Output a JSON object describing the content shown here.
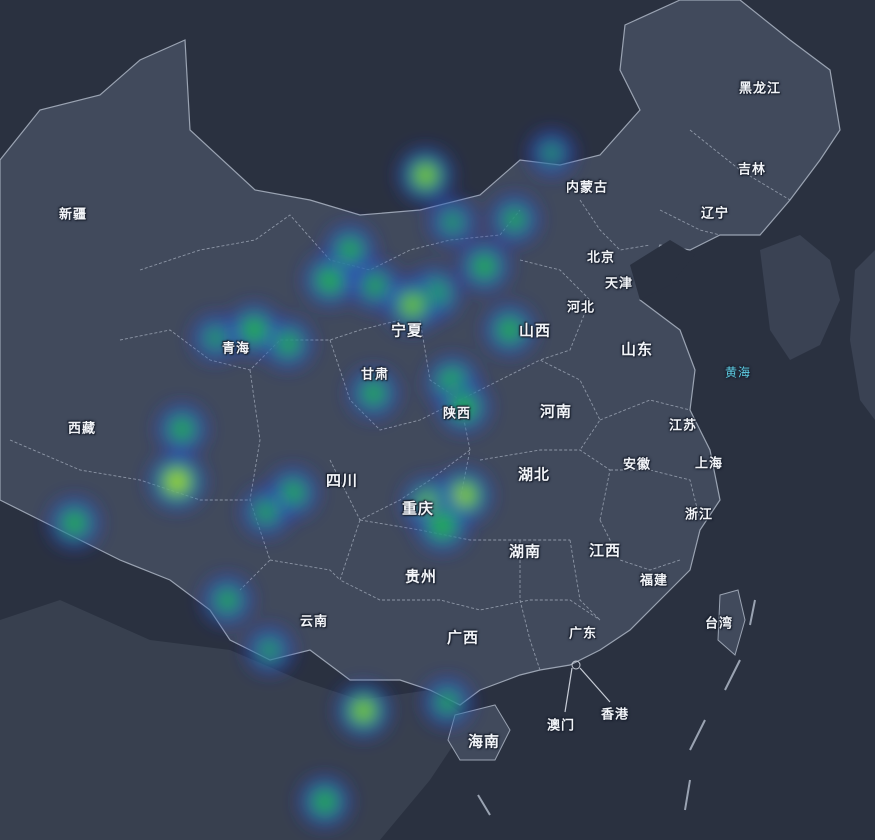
{
  "title": "",
  "labels": {
    "heilongjiang": "黑龙江",
    "jilin": "吉林",
    "liaoning": "辽宁",
    "neimenggu": "内蒙古",
    "beijing": "北京",
    "tianjin": "天津",
    "hebei": "河北",
    "shanxi": "山西",
    "shandong": "山东",
    "ningxia": "宁夏",
    "gansu": "甘肃",
    "qinghai": "青海",
    "xinjiang": "新疆",
    "xizang": "西藏",
    "shaanxi": "陕西",
    "henan": "河南",
    "jiangsu": "江苏",
    "shanghai": "上海",
    "anhui": "安徽",
    "hubei": "湖北",
    "sichuan": "四川",
    "chongqing": "重庆",
    "zhejiang": "浙江",
    "hunan": "湖南",
    "jiangxi": "江西",
    "guizhou": "贵州",
    "fujian": "福建",
    "taiwan": "台湾",
    "yunnan": "云南",
    "guangxi": "广西",
    "guangdong": "广东",
    "aomen": "澳门",
    "xianggang": "香港",
    "hainan": "海南",
    "huanghai": "黄海"
  },
  "colors": {
    "background": "#2a3140",
    "land": "#414a5c",
    "foreign_land": "#3a4253",
    "border": "#9aa3b2",
    "sea_text": "#5fd0e6",
    "heat_low": "#2b34c8",
    "heat_mid": "#22c62a",
    "heat_high": "#f4f41a"
  },
  "heat_points": [
    {
      "province": "内蒙古",
      "lng": 112.0,
      "lat": 42.2,
      "weight": 0.8
    },
    {
      "province": "内蒙古",
      "lng": 119.5,
      "lat": 43.0,
      "weight": 0.25
    },
    {
      "province": "内蒙古",
      "lng": 113.6,
      "lat": 40.5,
      "weight": 0.35
    },
    {
      "province": "河北",
      "lng": 117.3,
      "lat": 40.6,
      "weight": 0.5
    },
    {
      "province": "河北",
      "lng": 115.5,
      "lat": 38.9,
      "weight": 0.6
    },
    {
      "province": "山西",
      "lng": 112.5,
      "lat": 37.9,
      "weight": 0.7
    },
    {
      "province": "山西",
      "lng": 111.2,
      "lat": 37.5,
      "weight": 0.75
    },
    {
      "province": "宁夏",
      "lng": 106.3,
      "lat": 38.4,
      "weight": 0.65
    },
    {
      "province": "内蒙古",
      "lng": 107.5,
      "lat": 39.5,
      "weight": 0.55
    },
    {
      "province": "陕西",
      "lng": 109.0,
      "lat": 38.2,
      "weight": 0.5
    },
    {
      "province": "甘肃",
      "lng": 103.8,
      "lat": 36.1,
      "weight": 0.55
    },
    {
      "province": "青海",
      "lng": 101.8,
      "lat": 36.6,
      "weight": 0.65
    },
    {
      "province": "青海",
      "lng": 99.5,
      "lat": 36.3,
      "weight": 0.35
    },
    {
      "province": "山东",
      "lng": 117.0,
      "lat": 36.6,
      "weight": 0.6
    },
    {
      "province": "陕西",
      "lng": 108.9,
      "lat": 34.3,
      "weight": 0.55
    },
    {
      "province": "河南",
      "lng": 113.6,
      "lat": 34.7,
      "weight": 0.7
    },
    {
      "province": "河南",
      "lng": 114.3,
      "lat": 33.8,
      "weight": 0.65
    },
    {
      "province": "湖北",
      "lng": 114.3,
      "lat": 30.6,
      "weight": 0.85
    },
    {
      "province": "湖北",
      "lng": 112.2,
      "lat": 30.3,
      "weight": 0.75
    },
    {
      "province": "湖北",
      "lng": 113.0,
      "lat": 29.5,
      "weight": 0.7
    },
    {
      "province": "四川",
      "lng": 104.1,
      "lat": 30.7,
      "weight": 0.55
    },
    {
      "province": "四川",
      "lng": 102.5,
      "lat": 30.0,
      "weight": 0.45
    },
    {
      "province": "西藏",
      "lng": 97.2,
      "lat": 31.1,
      "weight": 0.95
    },
    {
      "province": "西藏",
      "lng": 97.5,
      "lat": 33.0,
      "weight": 0.55
    },
    {
      "province": "西藏",
      "lng": 91.1,
      "lat": 29.6,
      "weight": 0.6
    },
    {
      "province": "云南",
      "lng": 100.2,
      "lat": 26.8,
      "weight": 0.5
    },
    {
      "province": "广西",
      "lng": 108.3,
      "lat": 22.8,
      "weight": 0.8
    },
    {
      "province": "广东",
      "lng": 113.3,
      "lat": 23.1,
      "weight": 0.45
    },
    {
      "province": "云南",
      "lng": 102.7,
      "lat": 25.0,
      "weight": 0.35
    },
    {
      "province": "海南",
      "lng": 106.0,
      "lat": 19.5,
      "weight": 0.6
    }
  ]
}
